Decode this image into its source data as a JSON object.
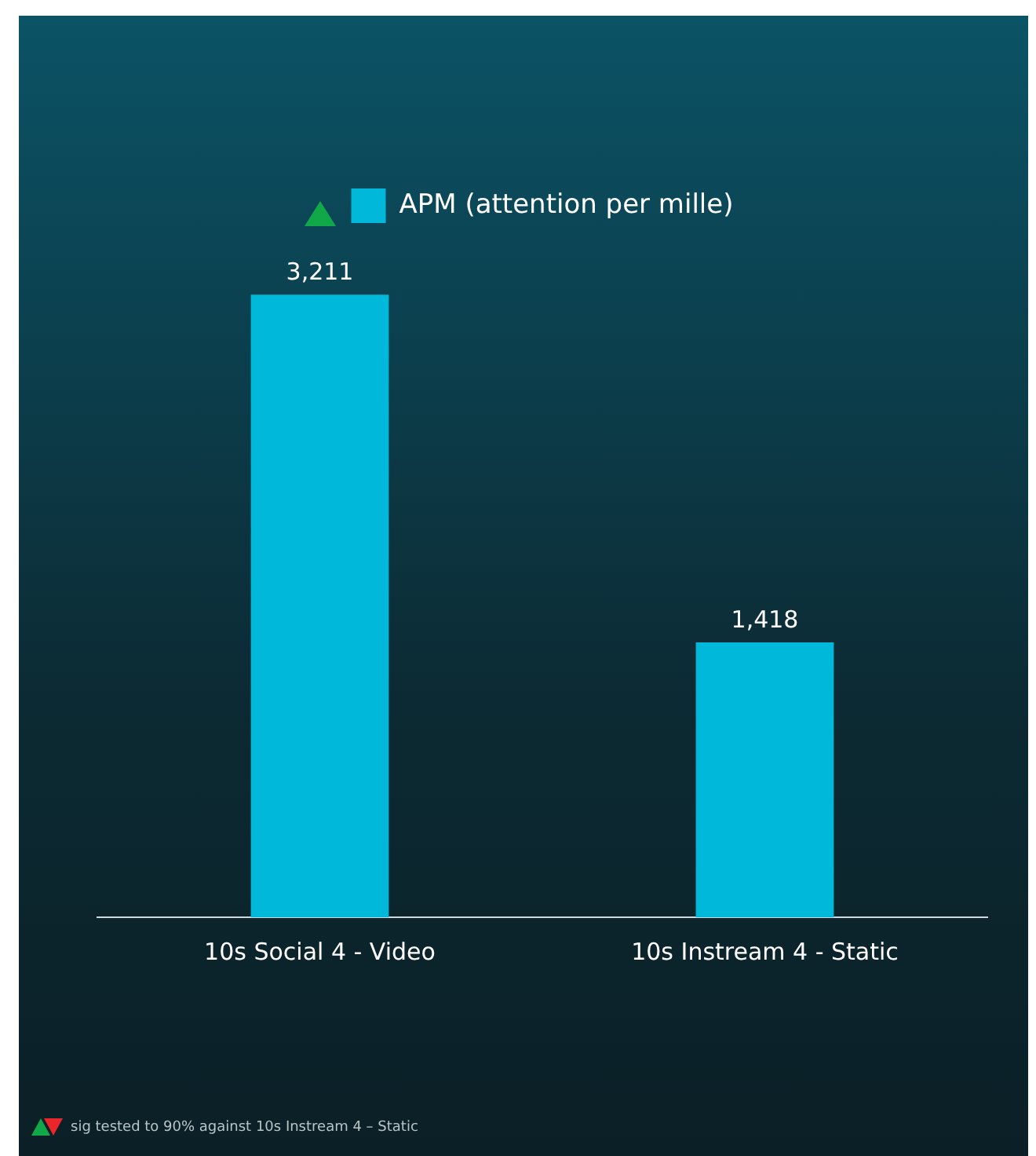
{
  "chart_data": {
    "type": "bar",
    "categories": [
      "10s Social 4 - Video",
      "10s Instream 4 - Static"
    ],
    "series": [
      {
        "name": "APM (attention per mille)",
        "color": "#00b8d9",
        "values": [
          3211,
          1418
        ],
        "value_labels": [
          "3,211",
          "1,418"
        ]
      }
    ],
    "legend": "top",
    "annotations": [
      "sig tested to 90% against 10s Instream 4 – Static"
    ]
  }
}
